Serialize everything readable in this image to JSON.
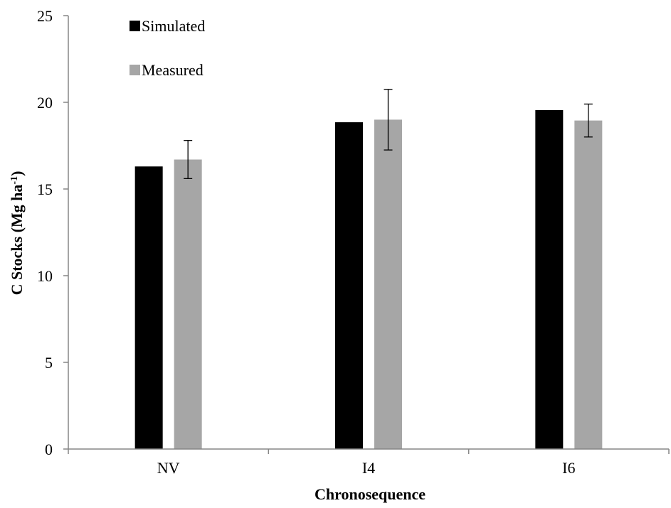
{
  "chart_data": {
    "type": "bar",
    "xlabel": "Chronosequence",
    "ylabel": "C Stocks (Mg ha",
    "ylabel_sup": "-1",
    "ylabel_close": ")",
    "categories": [
      "NV",
      "I4",
      "I6"
    ],
    "ylim": [
      0,
      25
    ],
    "yticks": [
      0,
      5,
      10,
      15,
      20,
      25
    ],
    "grid": false,
    "legend": "top-left",
    "series": [
      {
        "name": "Simulated",
        "color": "#000000",
        "values": [
          16.3,
          18.85,
          19.55
        ]
      },
      {
        "name": "Measured",
        "color": "#a6a6a6",
        "values": [
          16.7,
          19.0,
          18.95
        ],
        "error": [
          1.1,
          1.75,
          0.95
        ]
      }
    ]
  }
}
